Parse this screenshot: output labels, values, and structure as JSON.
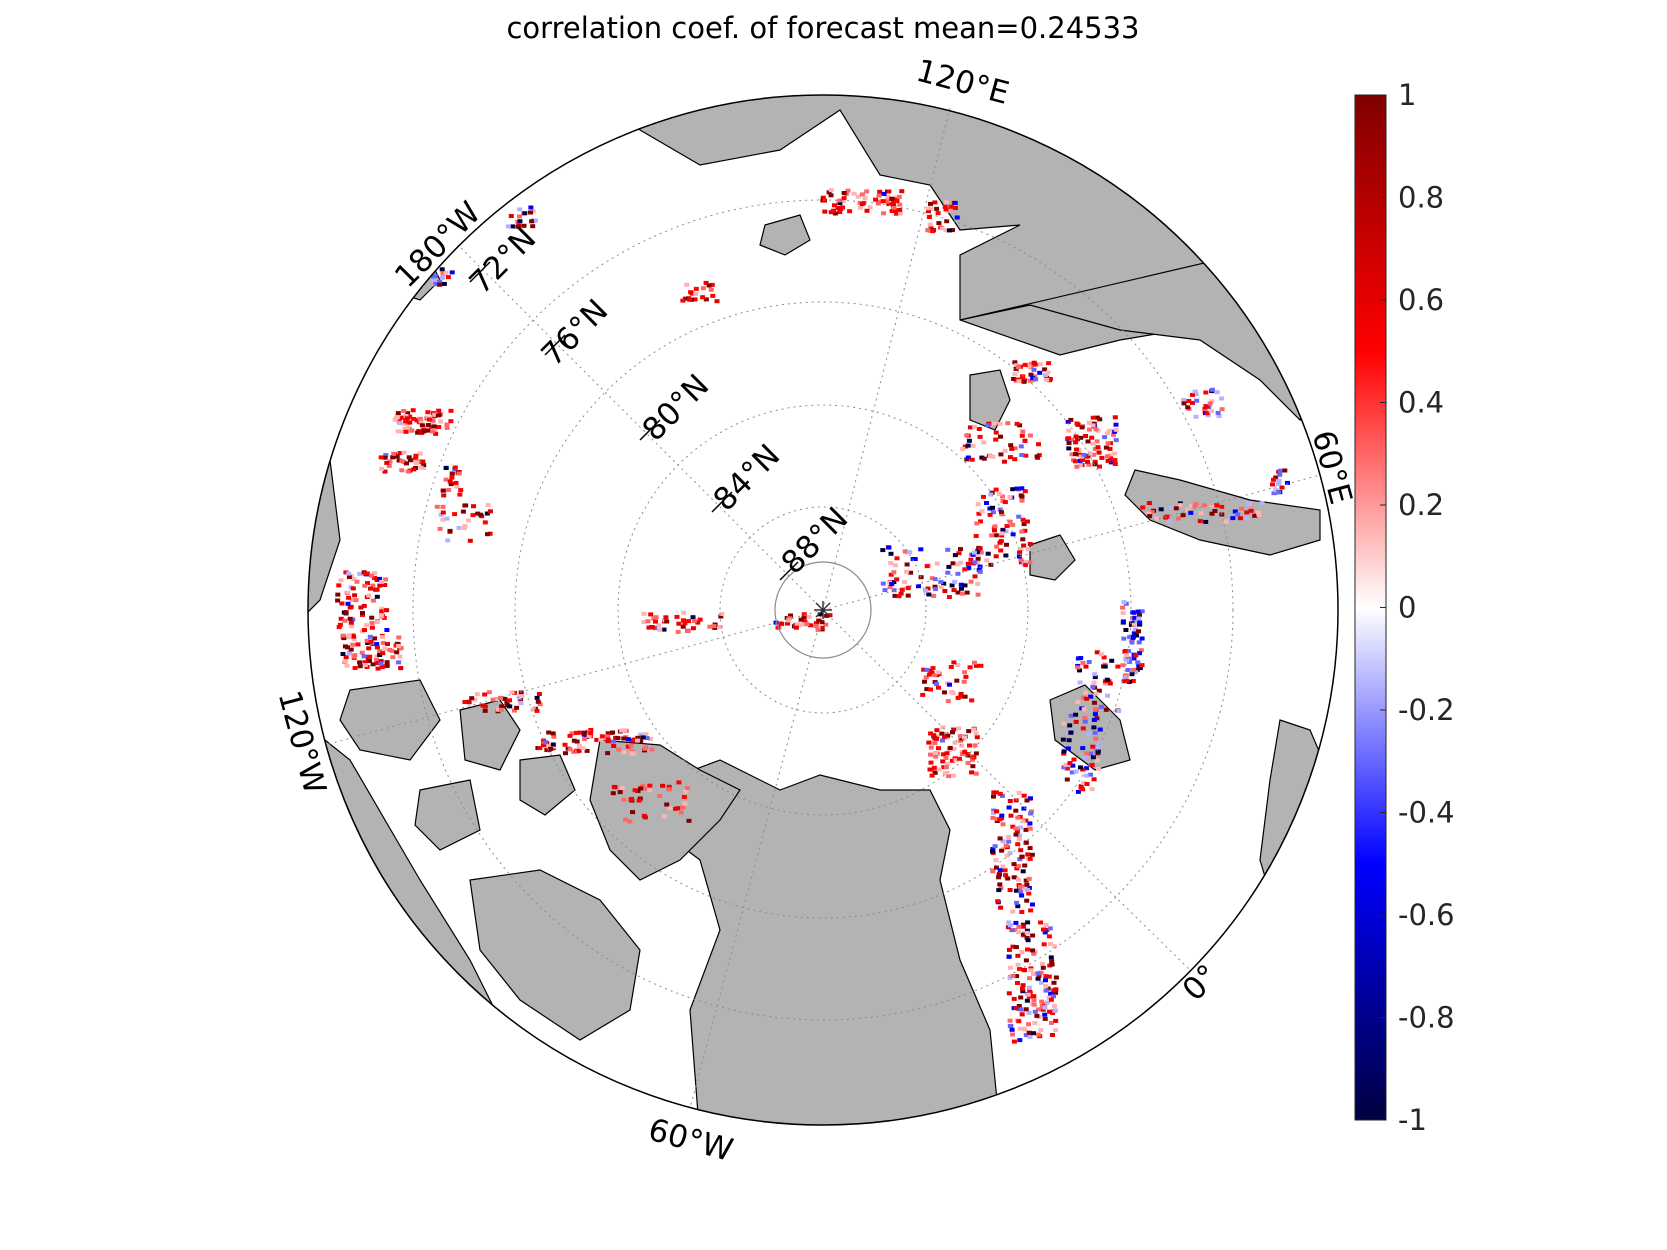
{
  "title": "correlation coef. of forecast mean=0.24533",
  "latitude_labels": [
    "72°N",
    "76°N",
    "80°N",
    "84°N",
    "88°N"
  ],
  "longitude_labels": [
    "120°E",
    "60°E",
    "0°",
    "60°W",
    "120°W",
    "180°W"
  ],
  "colorbar": {
    "min": -1,
    "max": 1,
    "ticks": [
      "1",
      "0.8",
      "0.6",
      "0.4",
      "0.2",
      "0",
      "-0.2",
      "-0.4",
      "-0.6",
      "-0.8",
      "-1"
    ],
    "colors": {
      "low": "#000040",
      "mid_low": "#0000ff",
      "zero": "#ffffff",
      "mid_high": "#ff0000",
      "high": "#800000"
    }
  },
  "land_color": "#b3b3b3",
  "center_marker": "asterisk"
}
